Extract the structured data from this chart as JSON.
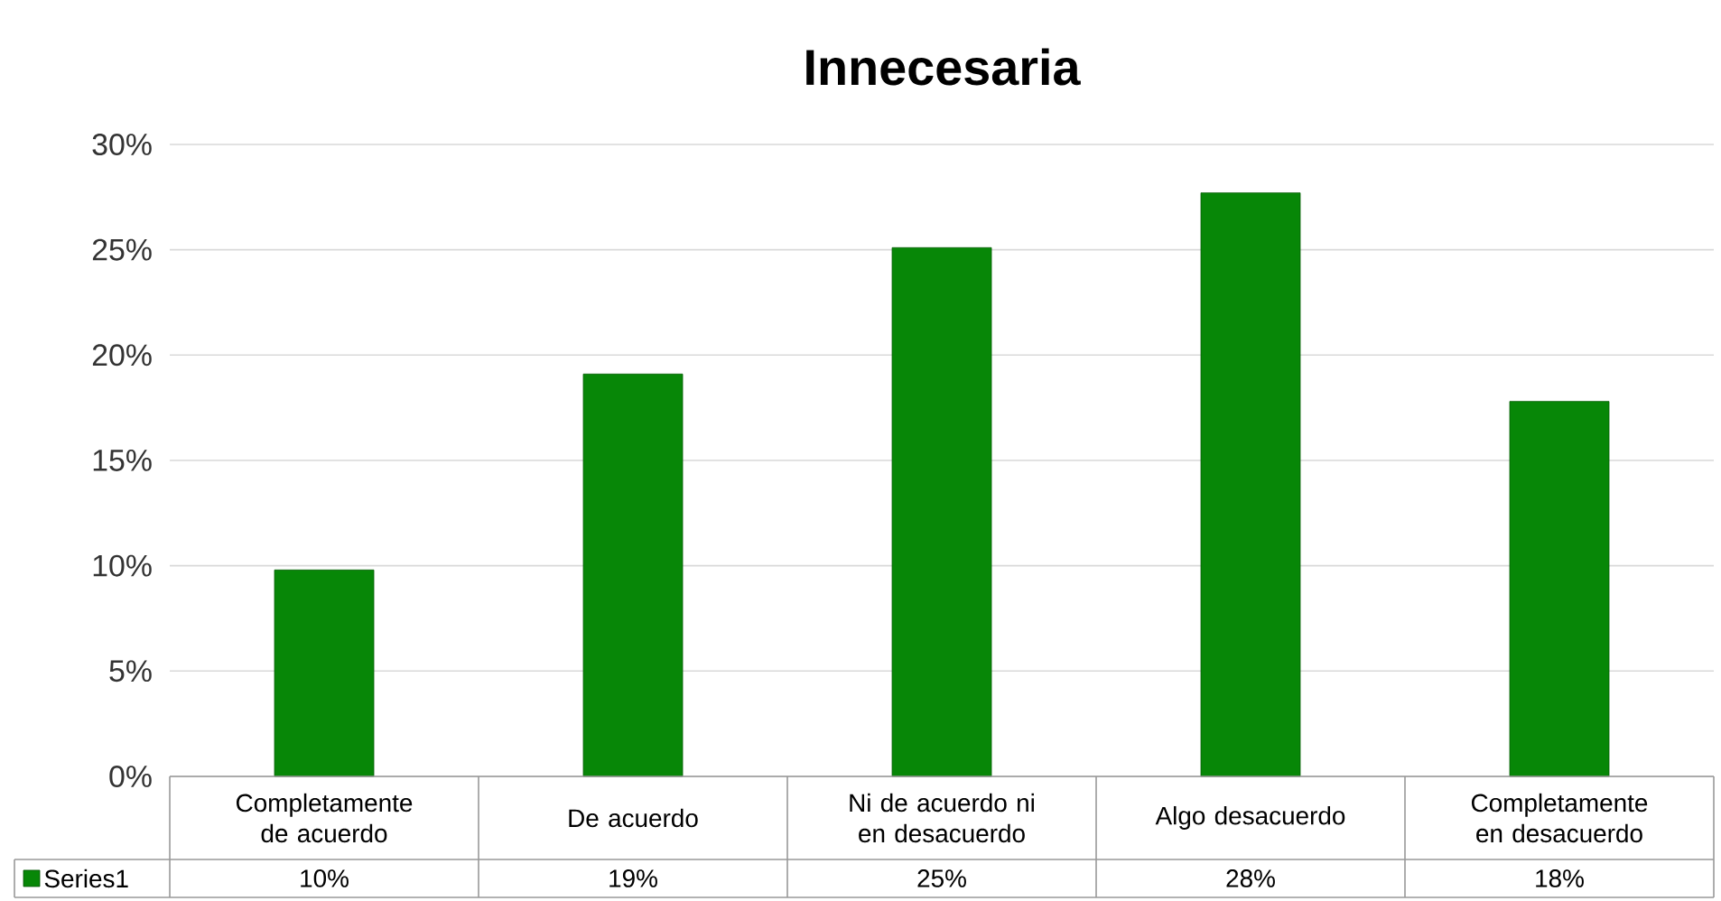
{
  "chart_data": {
    "type": "bar",
    "title": "Innecesaria",
    "categories": [
      "Completamente de acuerdo",
      "De acuerdo",
      "Ni de acuerdo ni en desacuerdo",
      "Algo desacuerdo",
      "Completamente en desacuerdo"
    ],
    "series": [
      {
        "name": "Series1",
        "color": "#078707",
        "values": [
          9.8,
          19.1,
          25.1,
          27.7,
          17.8
        ],
        "value_labels": [
          "10%",
          "19%",
          "25%",
          "28%",
          "18%"
        ]
      }
    ],
    "ylim": [
      0,
      30
    ],
    "yticks": [
      {
        "value": 0,
        "label": "0%"
      },
      {
        "value": 5,
        "label": "5%"
      },
      {
        "value": 10,
        "label": "10%"
      },
      {
        "value": 15,
        "label": "15%"
      },
      {
        "value": 20,
        "label": "20%"
      },
      {
        "value": 25,
        "label": "25%"
      },
      {
        "value": 30,
        "label": "30%"
      }
    ],
    "grid": "y",
    "legend": "bottom"
  }
}
